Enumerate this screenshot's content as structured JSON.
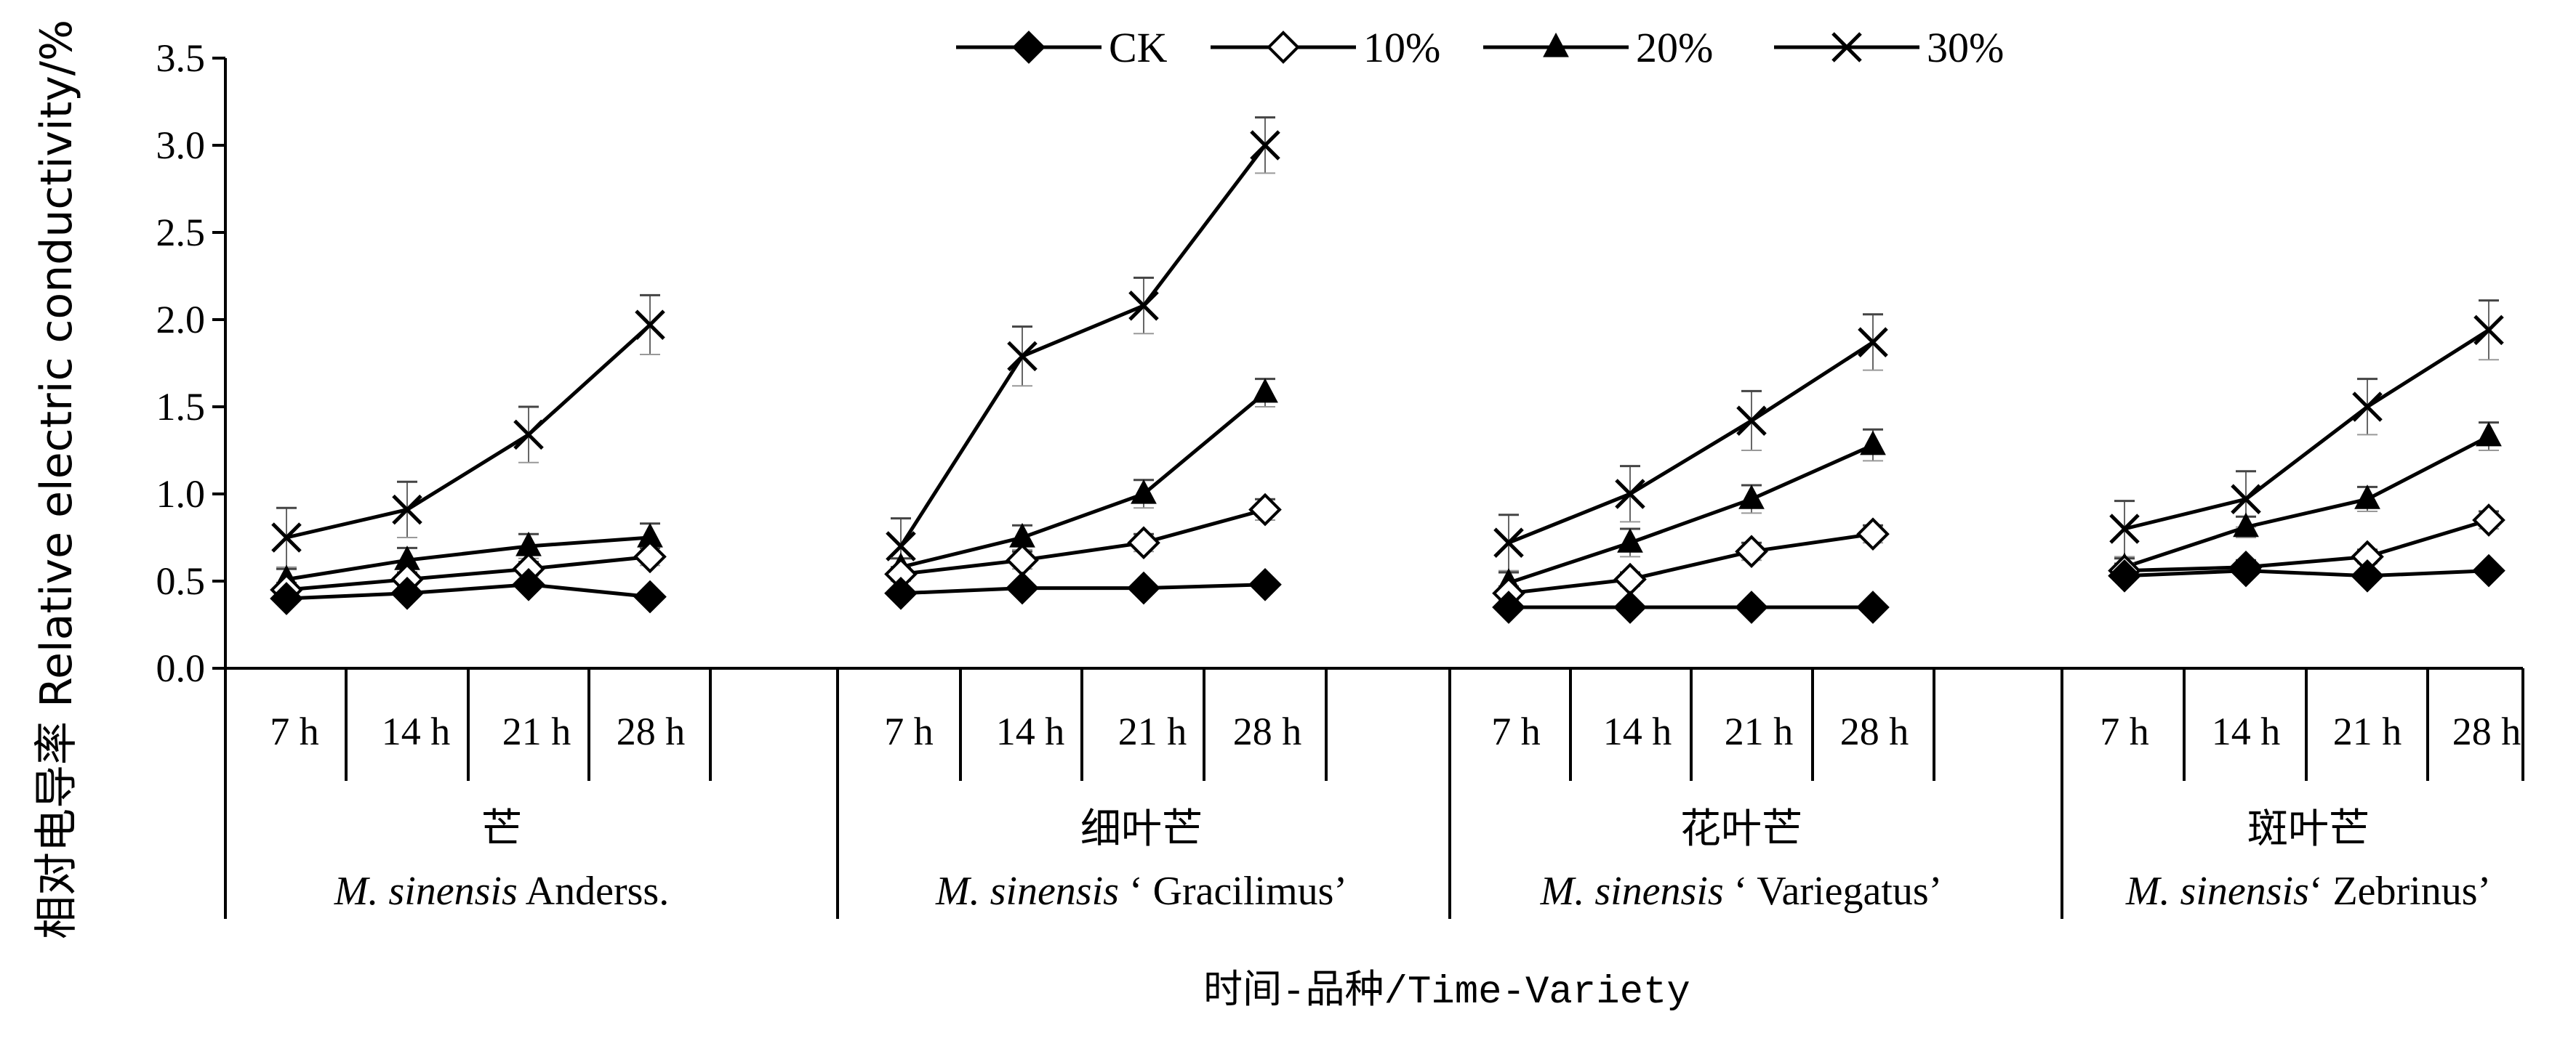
{
  "chart_data": {
    "type": "line",
    "ylabel": "相对电导率 Relative electric conductivity/%",
    "xlabel": "时间-品种/Time-Variety",
    "ylim": [
      0,
      3.5
    ],
    "yticks": [
      "0.0",
      "0.5",
      "1.0",
      "1.5",
      "2.0",
      "2.5",
      "3.0",
      "3.5"
    ],
    "time_labels": [
      "7 h",
      "14 h",
      "21 h",
      "28 h"
    ],
    "legend_position": "top",
    "grid": false,
    "groups": [
      {
        "name_cn": "芒",
        "name_italic": "M. sinensis",
        "name_rest": " Anderss.",
        "series": [
          {
            "name": "CK",
            "values": [
              0.4,
              0.43,
              0.48,
              0.41
            ],
            "errors": [
              0.03,
              0.03,
              0.03,
              0.03
            ]
          },
          {
            "name": "10%",
            "values": [
              0.45,
              0.51,
              0.57,
              0.64
            ],
            "errors": [
              0.04,
              0.04,
              0.04,
              0.05
            ]
          },
          {
            "name": "20%",
            "values": [
              0.51,
              0.62,
              0.7,
              0.75
            ],
            "errors": [
              0.06,
              0.07,
              0.07,
              0.08
            ]
          },
          {
            "name": "30%",
            "values": [
              0.75,
              0.91,
              1.34,
              1.97
            ],
            "errors": [
              0.17,
              0.16,
              0.16,
              0.17
            ]
          }
        ]
      },
      {
        "name_cn": "细叶芒",
        "name_italic": "M. sinensis",
        "name_rest": " ‘ Gracilimus’",
        "series": [
          {
            "name": "CK",
            "values": [
              0.43,
              0.46,
              0.46,
              0.48
            ],
            "errors": [
              0.03,
              0.03,
              0.03,
              0.03
            ]
          },
          {
            "name": "10%",
            "values": [
              0.54,
              0.62,
              0.72,
              0.91
            ],
            "errors": [
              0.04,
              0.05,
              0.05,
              0.06
            ]
          },
          {
            "name": "20%",
            "values": [
              0.58,
              0.75,
              1.0,
              1.58
            ],
            "errors": [
              0.05,
              0.07,
              0.08,
              0.08
            ]
          },
          {
            "name": "30%",
            "values": [
              0.7,
              1.79,
              2.08,
              3.0
            ],
            "errors": [
              0.16,
              0.17,
              0.16,
              0.16
            ]
          }
        ]
      },
      {
        "name_cn": "花叶芒",
        "name_italic": "M. sinensis",
        "name_rest": " ‘ Variegatus’",
        "series": [
          {
            "name": "CK",
            "values": [
              0.35,
              0.35,
              0.35,
              0.35
            ],
            "errors": [
              0.02,
              0.02,
              0.02,
              0.02
            ]
          },
          {
            "name": "10%",
            "values": [
              0.43,
              0.51,
              0.67,
              0.77
            ],
            "errors": [
              0.04,
              0.04,
              0.05,
              0.05
            ]
          },
          {
            "name": "20%",
            "values": [
              0.49,
              0.72,
              0.97,
              1.28
            ],
            "errors": [
              0.06,
              0.08,
              0.08,
              0.09
            ]
          },
          {
            "name": "30%",
            "values": [
              0.72,
              1.0,
              1.42,
              1.87
            ],
            "errors": [
              0.16,
              0.16,
              0.17,
              0.16
            ]
          }
        ]
      },
      {
        "name_cn": "斑叶芒",
        "name_italic": "M. sinensis",
        "name_rest": "‘ Zebrinus’",
        "series": [
          {
            "name": "CK",
            "values": [
              0.53,
              0.56,
              0.53,
              0.56
            ],
            "errors": [
              0.03,
              0.03,
              0.03,
              0.03
            ]
          },
          {
            "name": "10%",
            "values": [
              0.56,
              0.58,
              0.64,
              0.85
            ],
            "errors": [
              0.04,
              0.04,
              0.04,
              0.05
            ]
          },
          {
            "name": "20%",
            "values": [
              0.58,
              0.81,
              0.97,
              1.33
            ],
            "errors": [
              0.05,
              0.06,
              0.07,
              0.08
            ]
          },
          {
            "name": "30%",
            "values": [
              0.8,
              0.97,
              1.5,
              1.94
            ],
            "errors": [
              0.16,
              0.16,
              0.16,
              0.17
            ]
          }
        ]
      }
    ],
    "legend": [
      {
        "label": "CK",
        "marker": "filled-diamond"
      },
      {
        "label": "10%",
        "marker": "open-diamond"
      },
      {
        "label": "20%",
        "marker": "filled-triangle"
      },
      {
        "label": "30%",
        "marker": "cross"
      }
    ]
  }
}
